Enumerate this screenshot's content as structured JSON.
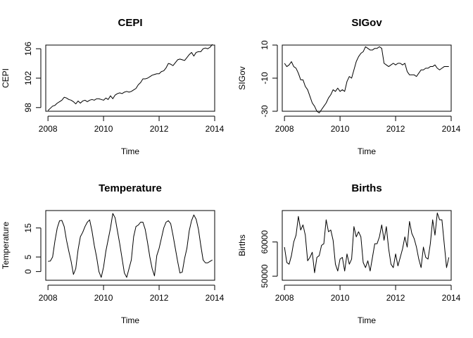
{
  "chart_data": [
    {
      "type": "line",
      "title": "CEPI",
      "xlabel": "Time",
      "ylabel": "CEPI",
      "xlim": [
        2007.92,
        2014.0
      ],
      "ylim": [
        97.5,
        106.5
      ],
      "xticks": [
        2008,
        2010,
        2012,
        2014
      ],
      "yticks": [
        98,
        102,
        106
      ],
      "x_start": 2008.0,
      "frequency": 12,
      "values": [
        97.6,
        97.9,
        98.2,
        98.3,
        98.6,
        98.8,
        99.0,
        99.4,
        99.3,
        99.1,
        99.0,
        98.8,
        98.5,
        98.9,
        98.6,
        98.9,
        99.0,
        98.8,
        99.0,
        99.1,
        99.0,
        99.2,
        99.2,
        99.1,
        99.0,
        99.3,
        99.1,
        99.6,
        99.2,
        99.7,
        99.9,
        100.0,
        99.9,
        100.1,
        100.2,
        100.1,
        100.2,
        100.4,
        100.6,
        101.1,
        101.4,
        101.9,
        101.9,
        102.0,
        102.2,
        102.4,
        102.5,
        102.6,
        102.6,
        102.9,
        103.0,
        103.4,
        104.0,
        103.9,
        103.7,
        104.1,
        104.5,
        104.6,
        104.5,
        104.4,
        104.8,
        105.2,
        105.5,
        105.0,
        105.5,
        105.6,
        105.6,
        106.0,
        106.1,
        106.0,
        106.2,
        106.6
      ]
    },
    {
      "type": "line",
      "title": "SIGov",
      "xlabel": "Time",
      "ylabel": "SIGov",
      "xlim": [
        2007.92,
        2014.0
      ],
      "ylim": [
        -30,
        10
      ],
      "xticks": [
        2008,
        2010,
        2012,
        2014
      ],
      "yticks": [
        -30,
        -10,
        10
      ],
      "x_start": 2008.0,
      "frequency": 12,
      "values": [
        -1,
        -3,
        -2,
        0,
        -3,
        -4,
        -7,
        -11,
        -11,
        -15,
        -17,
        -21,
        -25,
        -27,
        -30,
        -31,
        -29,
        -27,
        -25,
        -22,
        -20,
        -17,
        -18,
        -16,
        -18,
        -17,
        -18,
        -12,
        -9,
        -10,
        -5,
        0,
        3,
        5,
        6,
        9,
        8,
        7,
        7,
        8,
        8,
        9,
        8,
        -1,
        -2,
        -3,
        -2,
        -1,
        -2,
        -1,
        -1,
        -2,
        -1,
        -6,
        -8,
        -8,
        -8,
        -9,
        -7,
        -5,
        -5,
        -4,
        -4,
        -3,
        -3,
        -2,
        -4,
        -5,
        -4,
        -3,
        -3,
        -3
      ]
    },
    {
      "type": "line",
      "title": "Temperature",
      "xlabel": "Time",
      "ylabel": "Temperature",
      "xlim": [
        2007.92,
        2014.0
      ],
      "ylim": [
        -3,
        21
      ],
      "xticks": [
        2008,
        2010,
        2012,
        2014
      ],
      "yticks": [
        0,
        5,
        15
      ],
      "x_start": 2008.0,
      "frequency": 12,
      "values": [
        3.5,
        3.6,
        5.0,
        10.5,
        15.0,
        17.5,
        17.6,
        15.5,
        10.8,
        7.0,
        3.5,
        -1.0,
        1.0,
        7.5,
        12.0,
        13.5,
        15.5,
        17.0,
        17.8,
        14.0,
        9.0,
        5.0,
        0.0,
        -2.0,
        1.5,
        7.0,
        11.0,
        15.0,
        20.0,
        18.5,
        14.0,
        9.5,
        4.5,
        -0.5,
        -2.0,
        1.0,
        4.0,
        12.0,
        15.5,
        16.0,
        17.0,
        17.0,
        14.5,
        10.0,
        5.0,
        1.0,
        -1.5,
        5.5,
        8.0,
        11.5,
        15.0,
        17.0,
        17.5,
        16.5,
        12.5,
        8.0,
        3.5,
        -0.5,
        -0.2,
        4.5,
        8.0,
        14.0,
        17.5,
        19.5,
        18.0,
        14.5,
        9.0,
        4.0,
        3.0,
        3.0,
        3.5,
        4.0
      ]
    },
    {
      "type": "line",
      "title": "Births",
      "xlabel": "Time",
      "ylabel": "Births",
      "xlim": [
        2007.92,
        2014.0
      ],
      "ylim": [
        48800,
        69200
      ],
      "xticks": [
        2008,
        2010,
        2012,
        2014
      ],
      "yticks": [
        50000,
        60000
      ],
      "x_start": 2008.0,
      "frequency": 12,
      "values": [
        58500,
        54000,
        53500,
        56000,
        60000,
        62000,
        67500,
        63500,
        65000,
        62000,
        54500,
        55500,
        57000,
        51000,
        55500,
        56000,
        59000,
        59500,
        66500,
        63000,
        63500,
        60500,
        53500,
        51500,
        55000,
        55500,
        51500,
        56500,
        53500,
        55000,
        64500,
        61500,
        63000,
        61500,
        54000,
        52500,
        54500,
        51500,
        55500,
        59500,
        59500,
        61500,
        65000,
        60500,
        64500,
        58000,
        53500,
        52500,
        56500,
        53000,
        55500,
        58000,
        61500,
        58500,
        66000,
        62500,
        61000,
        58500,
        55000,
        52500,
        58500,
        55500,
        55000,
        59500,
        66500,
        62000,
        68500,
        66500,
        66500,
        59500,
        52500,
        55500
      ]
    }
  ]
}
